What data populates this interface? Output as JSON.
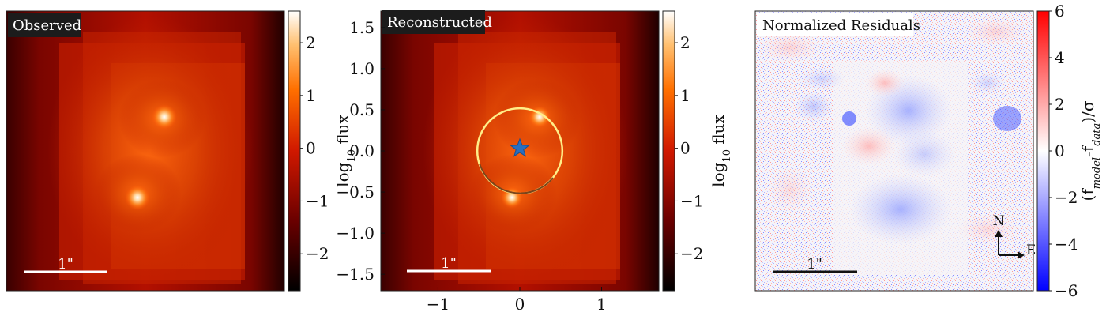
{
  "chart_data": [
    {
      "type": "heatmap",
      "panel": "observed",
      "title": "Observed",
      "scale_bar_label": "1\"",
      "colorbar": {
        "label": "log10 flux",
        "label_main": "log",
        "label_sub": "10",
        "label_rest": " flux",
        "range": [
          -2.7,
          2.6
        ],
        "ticks": [
          2,
          1,
          0,
          -1,
          -2
        ],
        "tick_labels": [
          "2",
          "1",
          "0",
          "−1",
          "−2"
        ],
        "colormap": "gist_heat",
        "colors": [
          "#000000",
          "#700000",
          "#e02000",
          "#ff8010",
          "#ffd090",
          "#ffffff"
        ]
      },
      "sources": [
        {
          "x": 0.5,
          "y": 0.5,
          "peak": 2.6
        },
        {
          "x": -0.3,
          "y": -0.55,
          "peak": 2.5
        }
      ]
    },
    {
      "type": "heatmap",
      "panel": "reconstructed",
      "title": "Reconstructed",
      "scale_bar_label": "1\"",
      "x_ticks": [
        -1,
        0,
        1
      ],
      "x_tick_labels": [
        "−1",
        "0",
        "1"
      ],
      "y_ticks": [
        1.5,
        1.0,
        0.5,
        0.0,
        -0.5,
        -1.0,
        -1.5
      ],
      "y_tick_labels": [
        "1.5",
        "1.0",
        "0.5",
        "0.0",
        "−0.5",
        "−1.0",
        "−1.5"
      ],
      "xlim": [
        -1.7,
        1.7
      ],
      "ylim": [
        -1.7,
        1.7
      ],
      "critical_curve_radius": 0.52,
      "source_position": {
        "x": 0.0,
        "y": 0.03
      },
      "colorbar": {
        "label": "log10 flux",
        "label_main": "log",
        "label_sub": "10",
        "label_rest": " flux",
        "range": [
          -2.7,
          2.6
        ],
        "ticks": [
          2,
          1,
          0,
          -1,
          -2
        ],
        "tick_labels": [
          "2",
          "1",
          "0",
          "−1",
          "−2"
        ]
      }
    },
    {
      "type": "heatmap",
      "panel": "normalized_residuals",
      "title": "Normalized Residuals",
      "scale_bar_label": "1\"",
      "compass": {
        "north": "N",
        "east": "E"
      },
      "colorbar": {
        "label": "(f_model - f_data)/σ",
        "label_text_1": "(f",
        "label_sub_1": "model",
        "label_text_2": "-f",
        "label_sub_2": "data",
        "label_text_3": ")/σ",
        "range": [
          -6,
          6
        ],
        "ticks": [
          6,
          4,
          2,
          0,
          -2,
          -4,
          -6
        ],
        "tick_labels": [
          "6",
          "4",
          "2",
          "0",
          "−2",
          "−4",
          "−6"
        ],
        "colormap": "bwr",
        "colors": [
          "#0000ff",
          "#ffffff",
          "#ff0000"
        ]
      }
    }
  ]
}
